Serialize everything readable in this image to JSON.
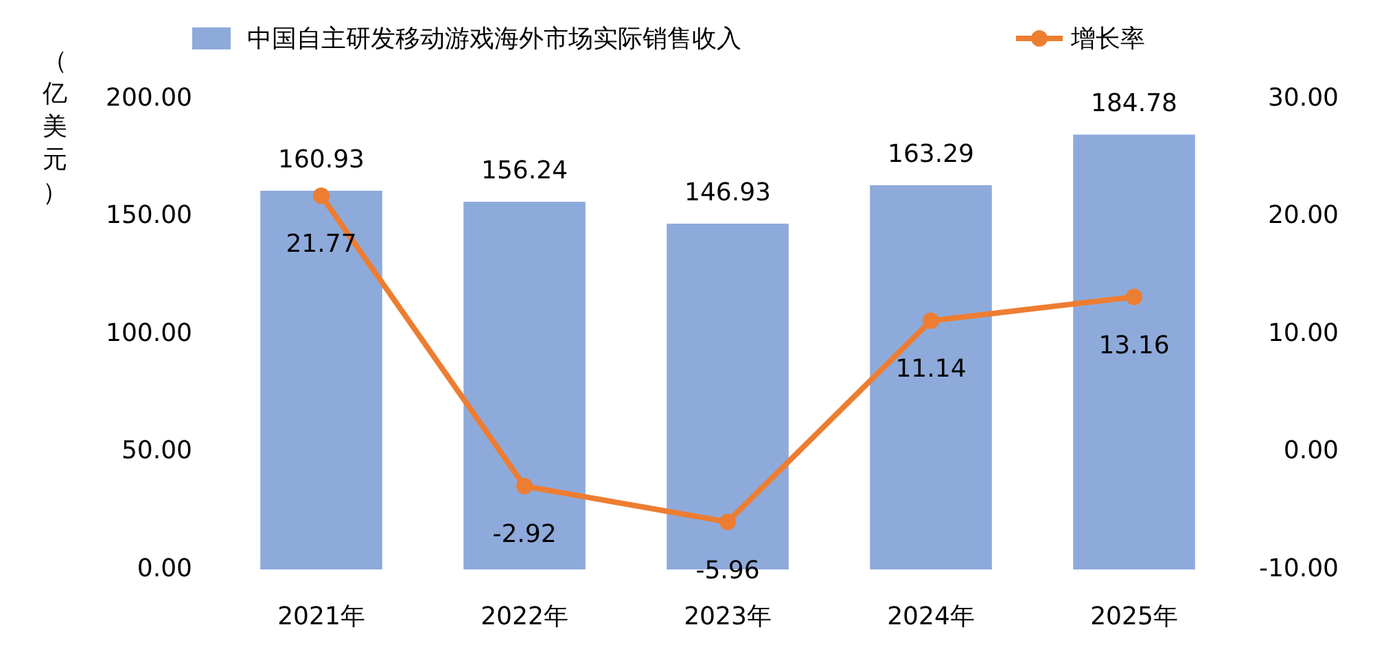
{
  "chart_data": {
    "type": "bar",
    "categories": [
      "2021年",
      "2022年",
      "2023年",
      "2024年",
      "2025年"
    ],
    "series": [
      {
        "name": "中国自主研发移动游戏海外市场实际销售收入",
        "color": "#8eaadb",
        "values": [
          160.93,
          156.24,
          146.93,
          163.29,
          184.78
        ]
      },
      {
        "name": "增长率",
        "type": "line",
        "axis": "y2",
        "color": "#ed7d31",
        "values": [
          21.77,
          -2.92,
          -5.96,
          11.14,
          13.16
        ]
      }
    ],
    "ylabel": "（亿美元）",
    "ylim": [
      0,
      200
    ],
    "yticks": [
      {
        "value": 0,
        "label": "0.00"
      },
      {
        "value": 50,
        "label": "50.00"
      },
      {
        "value": 100,
        "label": "100.00"
      },
      {
        "value": 150,
        "label": "150.00"
      },
      {
        "value": 200,
        "label": "200.00"
      }
    ],
    "y2lim": [
      -10,
      30
    ],
    "y2ticks": [
      {
        "value": -10,
        "label": "-10.00"
      },
      {
        "value": 0,
        "label": "0.00"
      },
      {
        "value": 10,
        "label": "10.00"
      },
      {
        "value": 20,
        "label": "20.00"
      },
      {
        "value": 30,
        "label": "30.00"
      }
    ],
    "data_labels": true,
    "legend": "top",
    "grid": false,
    "marker": "circle"
  }
}
